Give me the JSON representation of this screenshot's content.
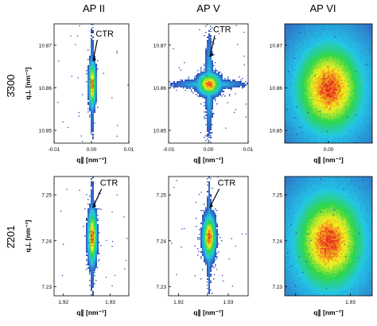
{
  "columns": [
    "AP II",
    "AP V",
    "AP VI"
  ],
  "rows": [
    "3300",
    "2201"
  ],
  "row_bar_char": "̄",
  "annotation": "CTR",
  "chart_data": [
    {
      "type": "heatmap",
      "panel": "AP II / 3300",
      "xlabel": "q∥ [nm⁻¹]",
      "ylabel": "q⊥ [nm⁻¹]",
      "xlim": [
        -0.01,
        0.01
      ],
      "ylim": [
        10.847,
        10.875
      ],
      "xticks": [
        {
          "v": -0.01,
          "label": "-0.01"
        },
        {
          "v": 0.0,
          "label": "0.00"
        },
        {
          "v": 0.01,
          "label": "0.01"
        }
      ],
      "yticks": [
        {
          "v": 10.85,
          "label": "10.85"
        },
        {
          "v": 10.86,
          "label": "10.86"
        },
        {
          "v": 10.87,
          "label": "10.87"
        }
      ],
      "show_xlabels": true,
      "show_ylabels": true,
      "peak": [
        0.0,
        10.861
      ],
      "spread": [
        0.0006,
        0.0035
      ],
      "streak": 0.009,
      "cross": 0.0,
      "halo": 0.0,
      "annotation": {
        "text": "CTR",
        "target": [
          0.0,
          10.866
        ],
        "text_at": [
          0.002,
          10.872
        ]
      }
    },
    {
      "type": "heatmap",
      "panel": "AP V / 3300",
      "xlabel": "q∥ [nm⁻¹]",
      "ylabel": "",
      "xlim": [
        -0.01,
        0.01
      ],
      "ylim": [
        10.847,
        10.875
      ],
      "xticks": [
        {
          "v": -0.01,
          "label": "-0.01"
        },
        {
          "v": 0.0,
          "label": "0.00"
        },
        {
          "v": 0.01,
          "label": "0.01"
        }
      ],
      "yticks": [
        {
          "v": 10.85,
          "label": "10.85"
        },
        {
          "v": 10.86,
          "label": "10.86"
        },
        {
          "v": 10.87,
          "label": "10.87"
        }
      ],
      "show_xlabels": true,
      "show_ylabels": true,
      "peak": [
        0.0,
        10.861
      ],
      "spread": [
        0.0018,
        0.0016
      ],
      "streak": 0.008,
      "cross": 0.006,
      "halo": 0.0,
      "annotation": {
        "text": "CTR",
        "target": [
          0.0,
          10.867
        ],
        "text_at": [
          0.002,
          10.873
        ]
      }
    },
    {
      "type": "heatmap",
      "panel": "AP VI / 3300",
      "xlabel": "q∥ [nm⁻¹]",
      "ylabel": "",
      "xlim": [
        -0.01,
        0.01
      ],
      "ylim": [
        10.847,
        10.875
      ],
      "xticks": [
        {
          "v": -0.01,
          "label": ""
        },
        {
          "v": 0.0,
          "label": "0.00"
        },
        {
          "v": 0.01,
          "label": ""
        }
      ],
      "yticks": [
        {
          "v": 10.85,
          "label": "10.85"
        },
        {
          "v": 10.86,
          "label": "10.86"
        },
        {
          "v": 10.87,
          "label": "10.87"
        }
      ],
      "show_xlabels": true,
      "show_ylabels": true,
      "peak": [
        0.0,
        10.86
      ],
      "spread": [
        0.0055,
        0.0075
      ],
      "streak": 0.0,
      "cross": 0.0,
      "halo": 1.0,
      "annotation": null
    },
    {
      "type": "heatmap",
      "panel": "AP II / 2201",
      "xlabel": "q∥ [nm⁻¹]",
      "ylabel": "q⊥ [nm⁻¹]",
      "xlim": [
        1.918,
        1.934
      ],
      "ylim": [
        7.228,
        7.254
      ],
      "xticks": [
        {
          "v": 1.92,
          "label": "1.92"
        },
        {
          "v": 1.93,
          "label": "1.93"
        }
      ],
      "yticks": [
        {
          "v": 7.23,
          "label": "7.23"
        },
        {
          "v": 7.24,
          "label": "7.24"
        },
        {
          "v": 7.25,
          "label": "7.25"
        }
      ],
      "show_xlabels": true,
      "show_ylabels": true,
      "peak": [
        1.926,
        7.241
      ],
      "spread": [
        0.0006,
        0.0038
      ],
      "streak": 0.009,
      "cross": 0.0,
      "halo": 0.0,
      "annotation": {
        "text": "CTR",
        "target": [
          1.926,
          7.247
        ],
        "text_at": [
          1.9285,
          7.252
        ]
      }
    },
    {
      "type": "heatmap",
      "panel": "AP V / 2201",
      "xlabel": "q∥ [nm⁻¹]",
      "ylabel": "",
      "xlim": [
        1.918,
        1.934
      ],
      "ylim": [
        7.228,
        7.254
      ],
      "xticks": [
        {
          "v": 1.92,
          "label": "1.92"
        },
        {
          "v": 1.93,
          "label": "1.93"
        }
      ],
      "yticks": [
        {
          "v": 7.23,
          "label": "7.23"
        },
        {
          "v": 7.24,
          "label": "7.24"
        },
        {
          "v": 7.25,
          "label": "7.25"
        }
      ],
      "show_xlabels": true,
      "show_ylabels": true,
      "peak": [
        1.926,
        7.241
      ],
      "spread": [
        0.0008,
        0.003
      ],
      "streak": 0.008,
      "cross": 0.0,
      "halo": 0.0,
      "annotation": {
        "text": "CTR",
        "target": [
          1.926,
          7.247
        ],
        "text_at": [
          1.9285,
          7.252
        ]
      }
    },
    {
      "type": "heatmap",
      "panel": "AP VI / 2201",
      "xlabel": "q∥ [nm⁻¹]",
      "ylabel": "",
      "xlim": [
        1.918,
        1.934
      ],
      "ylim": [
        7.228,
        7.254
      ],
      "xticks": [
        {
          "v": 1.92,
          "label": ""
        },
        {
          "v": 1.93,
          "label": "1.93"
        }
      ],
      "yticks": [
        {
          "v": 7.23,
          "label": "7.23"
        },
        {
          "v": 7.24,
          "label": "7.24"
        },
        {
          "v": 7.25,
          "label": "7.25"
        }
      ],
      "show_xlabels": true,
      "show_ylabels": true,
      "peak": [
        1.926,
        7.24
      ],
      "spread": [
        0.0045,
        0.0075
      ],
      "streak": 0.0,
      "cross": 0.0,
      "halo": 1.0,
      "annotation": null
    }
  ],
  "colors": {
    "low": "#3b1fa8",
    "mid": "#22c7e8",
    "green": "#2fd64a",
    "yellow": "#f6ef1e",
    "high": "#e8231e",
    "frame": "#000000"
  }
}
